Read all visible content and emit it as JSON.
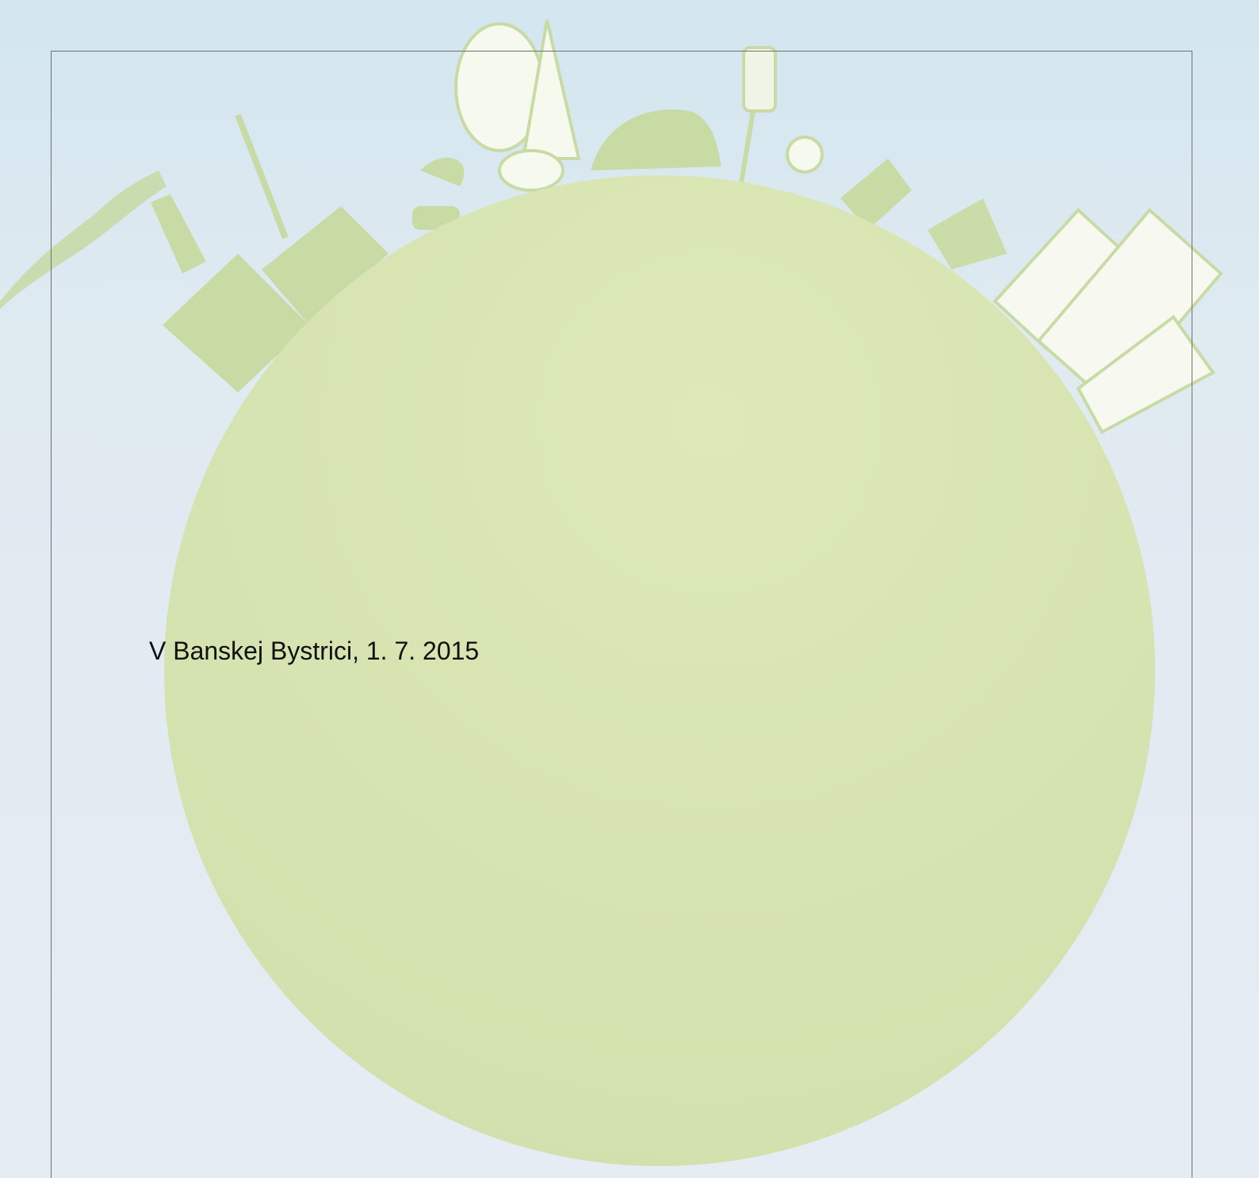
{
  "document": {
    "text": "V Banskej Bystrici, 1. 7. 2015"
  }
}
